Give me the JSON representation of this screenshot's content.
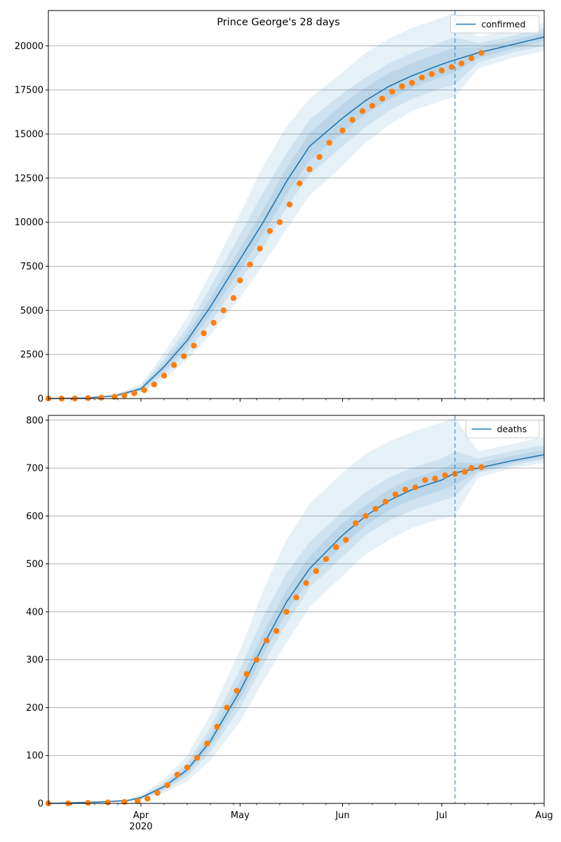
{
  "figure": {
    "title": "Prince George's 28 days"
  },
  "x_axis": {
    "ticks": [
      {
        "date": "2020-04-01",
        "label": "Apr",
        "sublabel": "2020"
      },
      {
        "date": "2020-05-01",
        "label": "May",
        "sublabel": ""
      },
      {
        "date": "2020-06-01",
        "label": "Jun",
        "sublabel": ""
      },
      {
        "date": "2020-07-01",
        "label": "Jul",
        "sublabel": ""
      },
      {
        "date": "2020-08-01",
        "label": "Aug",
        "sublabel": ""
      }
    ],
    "range": [
      "2020-03-04",
      "2020-08-01"
    ],
    "forecast_start": "2020-07-05"
  },
  "colors": {
    "model": "#1f77b4",
    "observed": "#ff7f0e",
    "band": "#1f77b4",
    "grid": "#b0b0b0"
  },
  "chart_data": [
    {
      "type": "line",
      "legend_position": "top-right",
      "grid": "horizontal",
      "ylim": [
        0,
        22000
      ],
      "yticks": [
        0,
        2500,
        5000,
        7500,
        10000,
        12500,
        15000,
        17500,
        20000
      ],
      "ytick_labels": [
        "0",
        "2500",
        "5000",
        "7500",
        "10000",
        "12500",
        "15000",
        "17500",
        "20000"
      ],
      "forecast_start": "2020-07-05",
      "series": [
        {
          "name": "confirmed",
          "kind": "model",
          "x": [
            "2020-03-04",
            "2020-03-15",
            "2020-03-24",
            "2020-04-01",
            "2020-04-08",
            "2020-04-15",
            "2020-04-22",
            "2020-05-01",
            "2020-05-08",
            "2020-05-15",
            "2020-05-22",
            "2020-06-01",
            "2020-06-08",
            "2020-06-15",
            "2020-06-22",
            "2020-07-01",
            "2020-07-05",
            "2020-07-12",
            "2020-07-22",
            "2020-08-01"
          ],
          "y": [
            0,
            30,
            150,
            550,
            1800,
            3300,
            5200,
            7900,
            10000,
            12300,
            14300,
            15900,
            16900,
            17700,
            18300,
            18950,
            19200,
            19600,
            20050,
            20500
          ],
          "bands": [
            {
              "lower": [
                0,
                20,
                100,
                350,
                1100,
                2200,
                3600,
                5700,
                7600,
                9600,
                11500,
                13200,
                14500,
                15500,
                16300,
                16900,
                17100,
                18700,
                19300,
                19700
              ],
              "upper": [
                0,
                45,
                220,
                800,
                2600,
                4600,
                7100,
                10500,
                13200,
                15400,
                17000,
                18500,
                19600,
                20400,
                21000,
                21600,
                21900,
                20500,
                20900,
                21300
              ]
            },
            {
              "lower": [
                0,
                24,
                120,
                420,
                1350,
                2650,
                4300,
                6700,
                8600,
                10800,
                12700,
                14300,
                15400,
                16300,
                17000,
                17600,
                17800,
                19050,
                19600,
                20000
              ],
              "upper": [
                0,
                38,
                190,
                700,
                2250,
                4050,
                6300,
                9300,
                11700,
                13900,
                15800,
                17300,
                18200,
                19000,
                19600,
                20200,
                20500,
                20150,
                20550,
                21000
              ]
            },
            {
              "lower": [
                0,
                27,
                135,
                480,
                1560,
                2980,
                4750,
                7300,
                9300,
                11550,
                13500,
                15100,
                16150,
                16950,
                17600,
                18250,
                18500,
                19300,
                19800,
                20250
              ],
              "upper": [
                0,
                34,
                170,
                630,
                2050,
                3650,
                5700,
                8500,
                10700,
                13050,
                15050,
                16700,
                17650,
                18450,
                19000,
                19650,
                19900,
                19900,
                20300,
                20750
              ]
            }
          ]
        },
        {
          "name": "confirmed",
          "kind": "observed",
          "x": [
            "2020-03-04",
            "2020-03-08",
            "2020-03-12",
            "2020-03-16",
            "2020-03-20",
            "2020-03-24",
            "2020-03-27",
            "2020-03-30",
            "2020-04-02",
            "2020-04-05",
            "2020-04-08",
            "2020-04-11",
            "2020-04-14",
            "2020-04-17",
            "2020-04-20",
            "2020-04-23",
            "2020-04-26",
            "2020-04-29",
            "2020-05-01",
            "2020-05-04",
            "2020-05-07",
            "2020-05-10",
            "2020-05-13",
            "2020-05-16",
            "2020-05-19",
            "2020-05-22",
            "2020-05-25",
            "2020-05-28",
            "2020-06-01",
            "2020-06-04",
            "2020-06-07",
            "2020-06-10",
            "2020-06-13",
            "2020-06-16",
            "2020-06-19",
            "2020-06-22",
            "2020-06-25",
            "2020-06-28",
            "2020-07-01",
            "2020-07-04",
            "2020-07-07",
            "2020-07-10",
            "2020-07-13"
          ],
          "y": [
            0,
            0,
            5,
            25,
            50,
            100,
            180,
            300,
            480,
            800,
            1300,
            1900,
            2400,
            3000,
            3700,
            4300,
            5000,
            5700,
            6700,
            7600,
            8500,
            9500,
            10000,
            11000,
            12200,
            13000,
            13700,
            14500,
            15200,
            15800,
            16300,
            16600,
            17000,
            17400,
            17700,
            17900,
            18200,
            18400,
            18600,
            18800,
            19000,
            19300,
            19600
          ]
        }
      ]
    },
    {
      "type": "line",
      "legend_position": "top-right",
      "grid": "horizontal",
      "ylim": [
        0,
        810
      ],
      "yticks": [
        0,
        100,
        200,
        300,
        400,
        500,
        600,
        700,
        800
      ],
      "ytick_labels": [
        "0",
        "100",
        "200",
        "300",
        "400",
        "500",
        "600",
        "700",
        "800"
      ],
      "forecast_start": "2020-07-05",
      "series": [
        {
          "name": "deaths",
          "kind": "model",
          "x": [
            "2020-03-04",
            "2020-03-20",
            "2020-03-28",
            "2020-04-01",
            "2020-04-08",
            "2020-04-15",
            "2020-04-22",
            "2020-05-01",
            "2020-05-08",
            "2020-05-15",
            "2020-05-22",
            "2020-06-01",
            "2020-06-08",
            "2020-06-15",
            "2020-06-22",
            "2020-07-01",
            "2020-07-05",
            "2020-07-12",
            "2020-07-22",
            "2020-08-01"
          ],
          "y": [
            0,
            3,
            6,
            12,
            35,
            70,
            130,
            235,
            330,
            420,
            490,
            560,
            600,
            632,
            655,
            675,
            690,
            700,
            715,
            728
          ],
          "bands": [
            {
              "lower": [
                0,
                2,
                4,
                7,
                22,
                46,
                90,
                170,
                255,
                335,
                410,
                475,
                520,
                550,
                575,
                595,
                600,
                680,
                700,
                710
              ],
              "upper": [
                0,
                4,
                9,
                18,
                50,
                100,
                185,
                320,
                445,
                550,
                625,
                690,
                730,
                755,
                775,
                795,
                805,
                735,
                750,
                765
              ]
            },
            {
              "lower": [
                0,
                2,
                5,
                9,
                27,
                56,
                108,
                200,
                290,
                375,
                450,
                515,
                560,
                590,
                612,
                632,
                640,
                690,
                705,
                718
              ],
              "upper": [
                0,
                3,
                8,
                15,
                43,
                85,
                158,
                280,
                390,
                480,
                545,
                610,
                650,
                680,
                700,
                720,
                735,
                720,
                735,
                748
              ]
            },
            {
              "lower": [
                0,
                3,
                5,
                10,
                31,
                63,
                119,
                218,
                310,
                398,
                470,
                538,
                580,
                612,
                634,
                654,
                665,
                694,
                710,
                722
              ],
              "upper": [
                0,
                3,
                7,
                14,
                39,
                77,
                142,
                255,
                355,
                445,
                515,
                585,
                622,
                655,
                678,
                698,
                712,
                710,
                725,
                738
              ]
            }
          ]
        },
        {
          "name": "deaths",
          "kind": "observed",
          "x": [
            "2020-03-04",
            "2020-03-10",
            "2020-03-16",
            "2020-03-22",
            "2020-03-27",
            "2020-03-31",
            "2020-04-03",
            "2020-04-06",
            "2020-04-09",
            "2020-04-12",
            "2020-04-15",
            "2020-04-18",
            "2020-04-21",
            "2020-04-24",
            "2020-04-27",
            "2020-04-30",
            "2020-05-03",
            "2020-05-06",
            "2020-05-09",
            "2020-05-12",
            "2020-05-15",
            "2020-05-18",
            "2020-05-21",
            "2020-05-24",
            "2020-05-27",
            "2020-05-30",
            "2020-06-02",
            "2020-06-05",
            "2020-06-08",
            "2020-06-11",
            "2020-06-14",
            "2020-06-17",
            "2020-06-20",
            "2020-06-23",
            "2020-06-26",
            "2020-06-29",
            "2020-07-02",
            "2020-07-05",
            "2020-07-08",
            "2020-07-10",
            "2020-07-13"
          ],
          "y": [
            0,
            0,
            1,
            2,
            3,
            5,
            10,
            22,
            38,
            60,
            75,
            95,
            125,
            160,
            200,
            235,
            270,
            300,
            340,
            360,
            400,
            430,
            460,
            485,
            510,
            535,
            550,
            585,
            600,
            615,
            630,
            645,
            655,
            660,
            675,
            678,
            685,
            688,
            692,
            700,
            702
          ]
        }
      ]
    }
  ]
}
